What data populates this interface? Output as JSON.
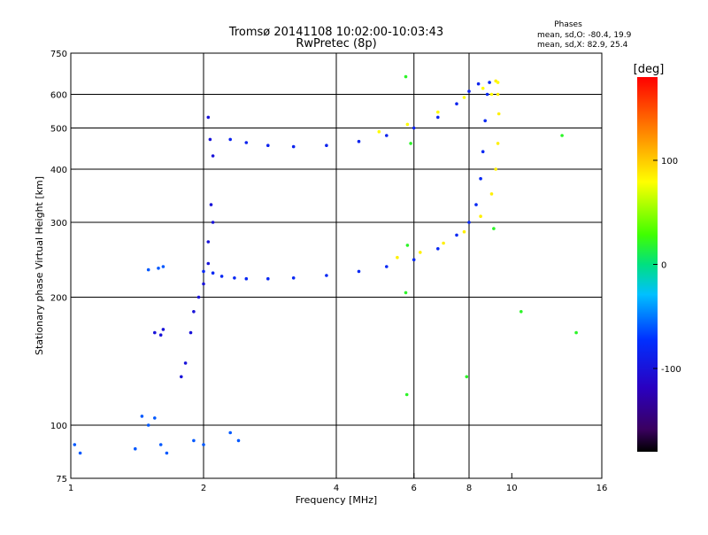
{
  "chart_data": {
    "type": "scatter",
    "title": "Tromsø 20141108 10:02:00-10:03:43",
    "subtitle": "RwPretec (8p)",
    "info": {
      "heading": "Phases",
      "line_o": "mean, sd,O: -80.4, 19.9",
      "line_x": "mean, sd,X:  82.9, 25.4"
    },
    "xlabel": "Frequency [MHz]",
    "ylabel": "Stationary phase Virtual Height [km]",
    "x_scale": "log",
    "y_scale": "log",
    "xlim": [
      1,
      16
    ],
    "ylim": [
      75,
      750
    ],
    "x_ticks": [
      1,
      2,
      4,
      6,
      8,
      10,
      16
    ],
    "y_ticks": [
      75,
      100,
      200,
      300,
      400,
      500,
      600,
      750
    ],
    "grid_x": [
      2,
      4,
      6,
      8
    ],
    "grid_y": [
      100,
      200,
      300,
      400,
      500,
      600
    ],
    "grid": true,
    "colorbar": {
      "label": "[deg]",
      "range": [
        -180,
        180
      ],
      "ticks": [
        -100,
        0,
        100
      ]
    },
    "colors": {
      "ink": "#000000",
      "o_mode": "#1a22d8",
      "x_mode": "#b8e22a",
      "spread": "#2a8ef0"
    },
    "series": [
      {
        "mode": "o",
        "phase": -80,
        "points": [
          [
            2.0,
            230
          ],
          [
            2.1,
            228
          ],
          [
            2.2,
            224
          ],
          [
            2.35,
            222
          ],
          [
            2.5,
            221
          ],
          [
            2.8,
            221
          ],
          [
            3.2,
            222
          ],
          [
            3.8,
            225
          ],
          [
            4.5,
            230
          ],
          [
            5.2,
            236
          ],
          [
            6.0,
            245
          ],
          [
            6.8,
            260
          ],
          [
            7.5,
            280
          ],
          [
            8.0,
            300
          ],
          [
            8.3,
            330
          ],
          [
            8.5,
            380
          ],
          [
            8.6,
            440
          ],
          [
            8.7,
            520
          ],
          [
            8.8,
            600
          ],
          [
            8.9,
            640
          ]
        ]
      },
      {
        "mode": "x",
        "phase": 85,
        "points": [
          [
            5.5,
            248
          ],
          [
            6.2,
            255
          ],
          [
            7.0,
            268
          ],
          [
            7.8,
            285
          ],
          [
            8.5,
            310
          ],
          [
            9.0,
            350
          ],
          [
            9.2,
            400
          ],
          [
            9.3,
            460
          ],
          [
            9.35,
            540
          ],
          [
            9.3,
            600
          ],
          [
            9.2,
            645
          ]
        ]
      },
      {
        "mode": "o-F2",
        "phase": -85,
        "points": [
          [
            2.3,
            470
          ],
          [
            2.5,
            462
          ],
          [
            2.8,
            455
          ],
          [
            3.2,
            452
          ],
          [
            3.8,
            455
          ],
          [
            4.5,
            465
          ],
          [
            5.2,
            480
          ],
          [
            6.0,
            500
          ],
          [
            6.8,
            530
          ],
          [
            7.5,
            570
          ],
          [
            8.0,
            610
          ],
          [
            8.4,
            635
          ]
        ]
      },
      {
        "mode": "x-F2",
        "phase": 80,
        "points": [
          [
            5.0,
            490
          ],
          [
            5.8,
            510
          ],
          [
            6.8,
            545
          ],
          [
            7.8,
            590
          ],
          [
            8.6,
            620
          ],
          [
            9.0,
            600
          ],
          [
            9.3,
            640
          ]
        ]
      },
      {
        "mode": "spread-F",
        "phase": -100,
        "points": [
          [
            1.55,
            165
          ],
          [
            1.6,
            163
          ],
          [
            1.62,
            168
          ],
          [
            1.78,
            130
          ],
          [
            1.82,
            140
          ],
          [
            1.87,
            165
          ],
          [
            1.9,
            185
          ],
          [
            1.95,
            200
          ],
          [
            2.0,
            215
          ],
          [
            2.05,
            240
          ],
          [
            2.05,
            270
          ],
          [
            2.1,
            300
          ],
          [
            2.08,
            330
          ],
          [
            2.1,
            430
          ],
          [
            2.07,
            470
          ],
          [
            2.05,
            530
          ]
        ]
      },
      {
        "mode": "low",
        "phase": -60,
        "points": [
          [
            1.5,
            232
          ],
          [
            1.58,
            234
          ],
          [
            1.62,
            236
          ],
          [
            1.45,
            105
          ],
          [
            1.5,
            100
          ],
          [
            1.55,
            104
          ],
          [
            1.6,
            90
          ],
          [
            1.65,
            86
          ],
          [
            1.4,
            88
          ],
          [
            1.9,
            92
          ],
          [
            2.0,
            90
          ],
          [
            2.3,
            96
          ],
          [
            2.4,
            92
          ],
          [
            1.02,
            90
          ],
          [
            1.05,
            86
          ]
        ]
      },
      {
        "mode": "isolated",
        "phase": 20,
        "points": [
          [
            5.75,
            660
          ],
          [
            5.8,
            265
          ],
          [
            5.75,
            205
          ],
          [
            5.78,
            118
          ],
          [
            7.9,
            130
          ],
          [
            10.5,
            185
          ],
          [
            13,
            480
          ],
          [
            14,
            165
          ],
          [
            9.1,
            290
          ],
          [
            5.9,
            460
          ]
        ]
      }
    ]
  }
}
